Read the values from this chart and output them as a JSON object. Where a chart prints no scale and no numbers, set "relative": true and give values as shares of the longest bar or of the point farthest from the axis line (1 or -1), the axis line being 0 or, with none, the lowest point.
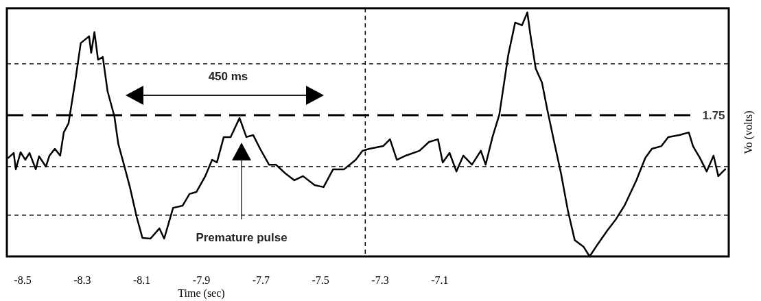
{
  "chart_data": {
    "type": "line",
    "relative": true,
    "xlabel": "Time (sec)",
    "ylabel": "Vo (volts)",
    "xlim": [
      -8.553,
      -6.13
    ],
    "xticks": [
      -8.5,
      -8.3,
      -8.1,
      -7.9,
      -7.7,
      -7.5,
      -7.3,
      -7.1
    ],
    "series": [
      {
        "color": "#000000",
        "x": [
          -8.548,
          -8.53,
          -8.523,
          -8.507,
          -8.491,
          -8.477,
          -8.456,
          -8.445,
          -8.422,
          -8.41,
          -8.392,
          -8.374,
          -8.362,
          -8.346,
          -8.323,
          -8.305,
          -8.277,
          -8.27,
          -8.259,
          -8.247,
          -8.231,
          -8.215,
          -8.192,
          -8.179,
          -8.162,
          -8.14,
          -8.117,
          -8.098,
          -8.071,
          -8.041,
          -8.025,
          -7.995,
          -7.963,
          -7.94,
          -7.917,
          -7.887,
          -7.864,
          -7.848,
          -7.825,
          -7.802,
          -7.772,
          -7.749,
          -7.726,
          -7.703,
          -7.673,
          -7.65,
          -7.618,
          -7.588,
          -7.559,
          -7.52,
          -7.49,
          -7.458,
          -7.421,
          -7.382,
          -7.359,
          -7.336,
          -7.29,
          -7.267,
          -7.244,
          -7.214,
          -7.168,
          -7.136,
          -7.106,
          -7.09,
          -7.067,
          -7.044,
          -7.021,
          -6.992,
          -6.962,
          -6.946,
          -6.923,
          -6.9,
          -6.87,
          -6.847,
          -6.824,
          -6.806,
          -6.796,
          -6.778,
          -6.757,
          -6.739,
          -6.716,
          -6.693,
          -6.67,
          -6.647,
          -6.617,
          -6.597,
          -6.571,
          -6.539,
          -6.509,
          -6.48,
          -6.44,
          -6.41,
          -6.388,
          -6.356,
          -6.333,
          -6.296,
          -6.264,
          -6.25,
          -6.227,
          -6.204,
          -6.181,
          -6.165,
          -6.142
        ],
        "values": [
          0.404,
          0.424,
          0.357,
          0.427,
          0.396,
          0.424,
          0.357,
          0.41,
          0.368,
          0.413,
          0.441,
          0.413,
          0.508,
          0.545,
          0.722,
          0.874,
          0.902,
          0.834,
          0.919,
          0.806,
          0.817,
          0.677,
          0.573,
          0.461,
          0.385,
          0.284,
          0.16,
          0.076,
          0.073,
          0.115,
          0.073,
          0.199,
          0.208,
          0.256,
          0.264,
          0.329,
          0.396,
          0.385,
          0.489,
          0.489,
          0.567,
          0.489,
          0.497,
          0.441,
          0.376,
          0.376,
          0.34,
          0.312,
          0.329,
          0.292,
          0.284,
          0.357,
          0.357,
          0.396,
          0.433,
          0.441,
          0.452,
          0.48,
          0.396,
          0.413,
          0.433,
          0.469,
          0.48,
          0.385,
          0.424,
          0.348,
          0.413,
          0.376,
          0.433,
          0.376,
          0.489,
          0.581,
          0.826,
          0.958,
          0.947,
          1,
          0.91,
          0.77,
          0.713,
          0.601,
          0.469,
          0.34,
          0.188,
          0.067,
          0.039,
          0,
          0.048,
          0.104,
          0.152,
          0.208,
          0.312,
          0.404,
          0.441,
          0.452,
          0.489,
          0.497,
          0.508,
          0.452,
          0.404,
          0.348,
          0.413,
          0.329,
          0.357
        ]
      }
    ],
    "ref_lines": [
      {
        "axis": "y",
        "value": 0.579,
        "line_style": "dashed"
      },
      {
        "axis": "y",
        "value": 0.789,
        "line_style": "dotted"
      },
      {
        "axis": "y",
        "value": 0.368,
        "line_style": "dotted"
      },
      {
        "axis": "y",
        "value": 0.169,
        "line_style": "dotted"
      },
      {
        "axis": "x",
        "value": -7.35,
        "line_style": "dotted"
      }
    ],
    "annotations": [
      "450 ms",
      "Premature pulse",
      "1.75"
    ]
  }
}
